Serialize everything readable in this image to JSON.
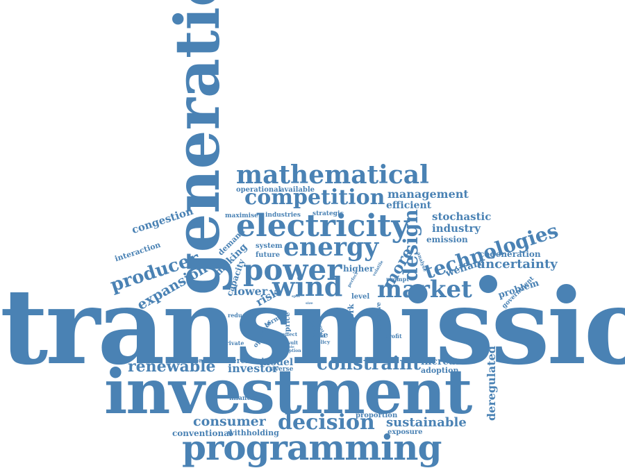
{
  "accent_color": "#4a82b4",
  "words": {
    "transmission": "transmission",
    "investment": "investment",
    "generation": "generation",
    "programming": "programming",
    "mathematical": "mathematical",
    "competition": "competition",
    "electricity": "electricity",
    "energy": "energy",
    "power": "power",
    "wind": "wind",
    "market": "market",
    "decision": "decision",
    "technologies": "technologies",
    "design": "design",
    "constraint": "constraint",
    "renewable": "renewable",
    "consumer": "consumer",
    "producer": "producer",
    "uncertainty": "uncertainty",
    "management": "management",
    "sustainable": "sustainable",
    "expansion": "expansion",
    "deregulated": "deregulated",
    "congestion": "congestion",
    "more": "more",
    "stochastic": "stochastic",
    "industry": "industry",
    "efficient": "efficient",
    "emission": "emission",
    "cogeneration": "cogeneration",
    "welfare": "welfare",
    "problem": "problem",
    "government": "government",
    "increase": "increase",
    "adoption": "adoption",
    "investor": "investor",
    "model": "model",
    "merchant": "merchant",
    "conventional": "conventional",
    "withholding": "withholding",
    "exposure": "exposure",
    "proportion": "proportion",
    "financial": "financial",
    "contract": "contract",
    "averse": "averse",
    "insight": "insight",
    "network": "network",
    "price": "price",
    "site": "site",
    "level": "level",
    "higher": "higher",
    "lower": "lower",
    "risk": "risk",
    "capacity": "capacity",
    "making": "making",
    "demand": "demand",
    "future": "future",
    "system": "system",
    "maximise": "maximise",
    "industries": "industries",
    "strategic": "strategic",
    "operational": "operational",
    "available": "available",
    "interaction": "interaction",
    "reduce": "reduce",
    "term": "term",
    "operator": "operator",
    "private": "private",
    "effect": "effect",
    "result": "result",
    "grid": "grid",
    "policy": "policy",
    "effective": "effective",
    "profit": "profit",
    "prompt": "prompt",
    "analyse": "analyse",
    "volatile": "volatile",
    "option": "option",
    "line": "line",
    "heat": "heat",
    "perfect": "perfect",
    "able": "able",
    "size": "size",
    "spot": "spot"
  }
}
